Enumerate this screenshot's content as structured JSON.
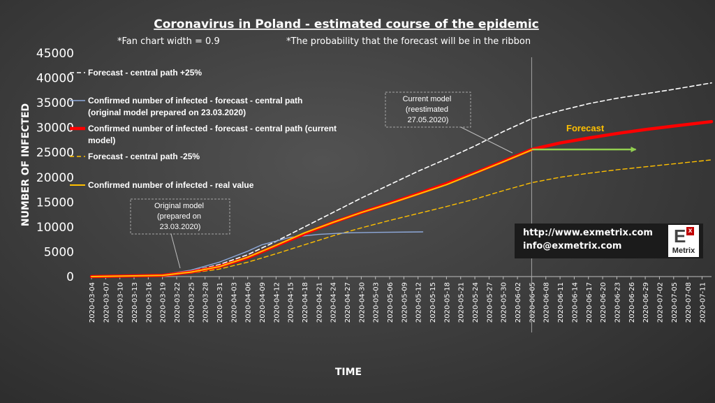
{
  "page": {
    "title": "Coronavirus  in Poland  - estimated course of the epidemic",
    "subtitle_left": "*Fan chart width = 0.9",
    "subtitle_right": "*The probability that the forecast  will be in the ribbon"
  },
  "chart_data": {
    "type": "line",
    "xlabel": "TIME",
    "ylabel": "NUMBER OF INFECTED",
    "ylim": [
      0,
      45000
    ],
    "yticks": [
      "0",
      "5000",
      "10000",
      "15000",
      "20000",
      "25000",
      "30000",
      "35000",
      "40000",
      "45000"
    ],
    "x_start": "2020-03-04",
    "x_end": "2020-07-13",
    "xtick_labels": [
      "2020-03-04",
      "2020-03-07",
      "2020-03-10",
      "2020-03-13",
      "2020-03-16",
      "2020-03-19",
      "2020-03-22",
      "2020-03-25",
      "2020-03-28",
      "2020-03-31",
      "2020-04-03",
      "2020-04-06",
      "2020-04-09",
      "2020-04-12",
      "2020-04-15",
      "2020-04-18",
      "2020-04-21",
      "2020-04-24",
      "2020-04-27",
      "2020-04-30",
      "2020-05-03",
      "2020-05-06",
      "2020-05-09",
      "2020-05-12",
      "2020-05-15",
      "2020-05-18",
      "2020-05-21",
      "2020-05-24",
      "2020-05-27",
      "2020-05-30",
      "2020-06-02",
      "2020-06-05",
      "2020-06-08",
      "2020-06-11",
      "2020-06-14",
      "2020-06-17",
      "2020-06-20",
      "2020-06-23",
      "2020-06-26",
      "2020-06-29",
      "2020-07-02",
      "2020-07-05",
      "2020-07-08",
      "2020-07-11"
    ],
    "grid": false,
    "legend_placement": "top-left",
    "vertical_marker_date": "2020-06-05",
    "series": [
      {
        "name": "Forecast - central path +25%",
        "color": "#ffffff",
        "style": "dashed",
        "points": [
          [
            "2020-03-04",
            0
          ],
          [
            "2020-03-19",
            300
          ],
          [
            "2020-03-25",
            1100
          ],
          [
            "2020-03-31",
            2400
          ],
          [
            "2020-04-06",
            4400
          ],
          [
            "2020-04-12",
            7100
          ],
          [
            "2020-04-18",
            10000
          ],
          [
            "2020-04-24",
            12900
          ],
          [
            "2020-04-30",
            15800
          ],
          [
            "2020-05-06",
            18500
          ],
          [
            "2020-05-12",
            21200
          ],
          [
            "2020-05-18",
            23700
          ],
          [
            "2020-05-24",
            26300
          ],
          [
            "2020-05-30",
            29200
          ],
          [
            "2020-06-05",
            31800
          ],
          [
            "2020-06-11",
            33400
          ],
          [
            "2020-06-17",
            34800
          ],
          [
            "2020-06-23",
            35900
          ],
          [
            "2020-06-29",
            36800
          ],
          [
            "2020-07-05",
            37700
          ],
          [
            "2020-07-13",
            39000
          ]
        ]
      },
      {
        "name": "Confirmed number of infected - forecast - central path (original model prepared on 23.03.2020)",
        "color": "#8ea9db",
        "style": "solid",
        "points": [
          [
            "2020-03-04",
            0
          ],
          [
            "2020-03-19",
            400
          ],
          [
            "2020-03-25",
            1300
          ],
          [
            "2020-03-31",
            2900
          ],
          [
            "2020-04-06",
            5100
          ],
          [
            "2020-04-09",
            6400
          ],
          [
            "2020-04-15",
            7900
          ],
          [
            "2020-04-21",
            8500
          ],
          [
            "2020-04-27",
            8800
          ],
          [
            "2020-05-03",
            8900
          ],
          [
            "2020-05-13",
            9000
          ]
        ]
      },
      {
        "name": "Confirmed number of infected - forecast - central path (current model)",
        "color": "#ff0000",
        "style": "solid",
        "points": [
          [
            "2020-03-04",
            0
          ],
          [
            "2020-03-19",
            250
          ],
          [
            "2020-03-25",
            900
          ],
          [
            "2020-03-31",
            2000
          ],
          [
            "2020-04-06",
            3800
          ],
          [
            "2020-04-12",
            6200
          ],
          [
            "2020-04-18",
            8600
          ],
          [
            "2020-04-24",
            10900
          ],
          [
            "2020-04-30",
            12900
          ],
          [
            "2020-05-06",
            14800
          ],
          [
            "2020-05-12",
            16700
          ],
          [
            "2020-05-18",
            18700
          ],
          [
            "2020-05-24",
            20900
          ],
          [
            "2020-05-30",
            23200
          ],
          [
            "2020-06-05",
            25600
          ],
          [
            "2020-06-11",
            26900
          ],
          [
            "2020-06-17",
            27900
          ],
          [
            "2020-06-23",
            28800
          ],
          [
            "2020-06-29",
            29600
          ],
          [
            "2020-07-05",
            30300
          ],
          [
            "2020-07-13",
            31200
          ]
        ]
      },
      {
        "name": "Forecast - central path  -25%",
        "color": "#ffc000",
        "style": "dashed",
        "points": [
          [
            "2020-03-04",
            0
          ],
          [
            "2020-03-19",
            200
          ],
          [
            "2020-03-25",
            700
          ],
          [
            "2020-03-31",
            1500
          ],
          [
            "2020-04-06",
            2900
          ],
          [
            "2020-04-12",
            4600
          ],
          [
            "2020-04-18",
            6400
          ],
          [
            "2020-04-24",
            8200
          ],
          [
            "2020-04-30",
            9800
          ],
          [
            "2020-05-06",
            11300
          ],
          [
            "2020-05-12",
            12700
          ],
          [
            "2020-05-18",
            14100
          ],
          [
            "2020-05-24",
            15600
          ],
          [
            "2020-05-30",
            17300
          ],
          [
            "2020-06-05",
            18900
          ],
          [
            "2020-06-11",
            20000
          ],
          [
            "2020-06-17",
            20800
          ],
          [
            "2020-06-23",
            21500
          ],
          [
            "2020-06-29",
            22100
          ],
          [
            "2020-07-05",
            22700
          ],
          [
            "2020-07-13",
            23500
          ]
        ]
      },
      {
        "name": "Confirmed number of infected - real value",
        "color": "#ffc000",
        "style": "solid",
        "points": [
          [
            "2020-03-04",
            0
          ],
          [
            "2020-03-19",
            250
          ],
          [
            "2020-03-25",
            900
          ],
          [
            "2020-03-31",
            2000
          ],
          [
            "2020-04-06",
            3900
          ],
          [
            "2020-04-12",
            6300
          ],
          [
            "2020-04-18",
            8800
          ],
          [
            "2020-04-24",
            10900
          ],
          [
            "2020-04-30",
            12900
          ],
          [
            "2020-05-06",
            14700
          ],
          [
            "2020-05-12",
            16600
          ],
          [
            "2020-05-18",
            18500
          ],
          [
            "2020-05-24",
            20800
          ],
          [
            "2020-05-30",
            23100
          ],
          [
            "2020-06-05",
            25500
          ]
        ]
      }
    ],
    "annotations": {
      "original_model": [
        "Original model",
        "(prepared on",
        "23.03.2020)"
      ],
      "current_model": [
        "Current model",
        "(reestimated",
        "27.05.2020)"
      ],
      "forecast": "Forecast"
    },
    "forecast_arrow": {
      "color": "#92d050",
      "from_date": "2020-06-05",
      "to_date": "2020-06-27",
      "value": 25600
    }
  },
  "info": {
    "url": "http://www.exmetrix.com",
    "email": "info@exmetrix.com",
    "logo_letter": "E",
    "logo_sup": "x",
    "logo_brand": "Metrix"
  }
}
